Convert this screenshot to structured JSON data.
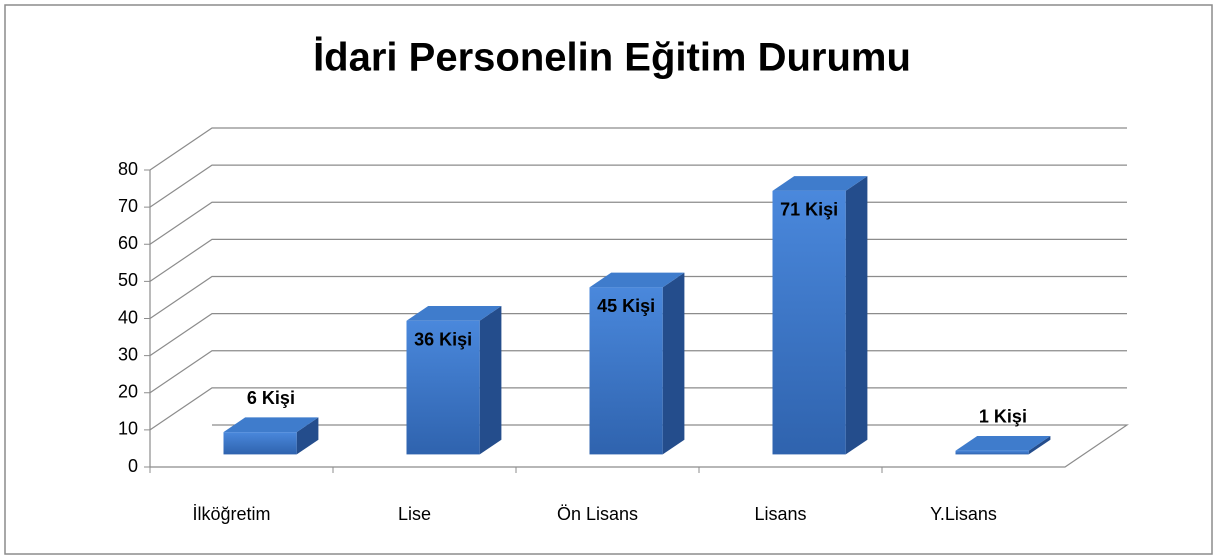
{
  "chart_data": {
    "type": "bar3d",
    "title": "İdari Personelin Eğitim Durumu",
    "categories": [
      "İlköğretim",
      "Lise",
      "Ön Lisans",
      "Lisans",
      "Y.Lisans"
    ],
    "values": [
      6,
      36,
      45,
      71,
      1
    ],
    "value_labels": [
      "6 Kişi",
      "36 Kişi",
      "45 Kişi",
      "71 Kişi",
      "1 Kişi"
    ],
    "color": "#3a78cc",
    "ylim": [
      0,
      80
    ],
    "yticks": [
      0,
      10,
      20,
      30,
      40,
      50,
      60,
      70,
      80
    ],
    "grid": true
  }
}
